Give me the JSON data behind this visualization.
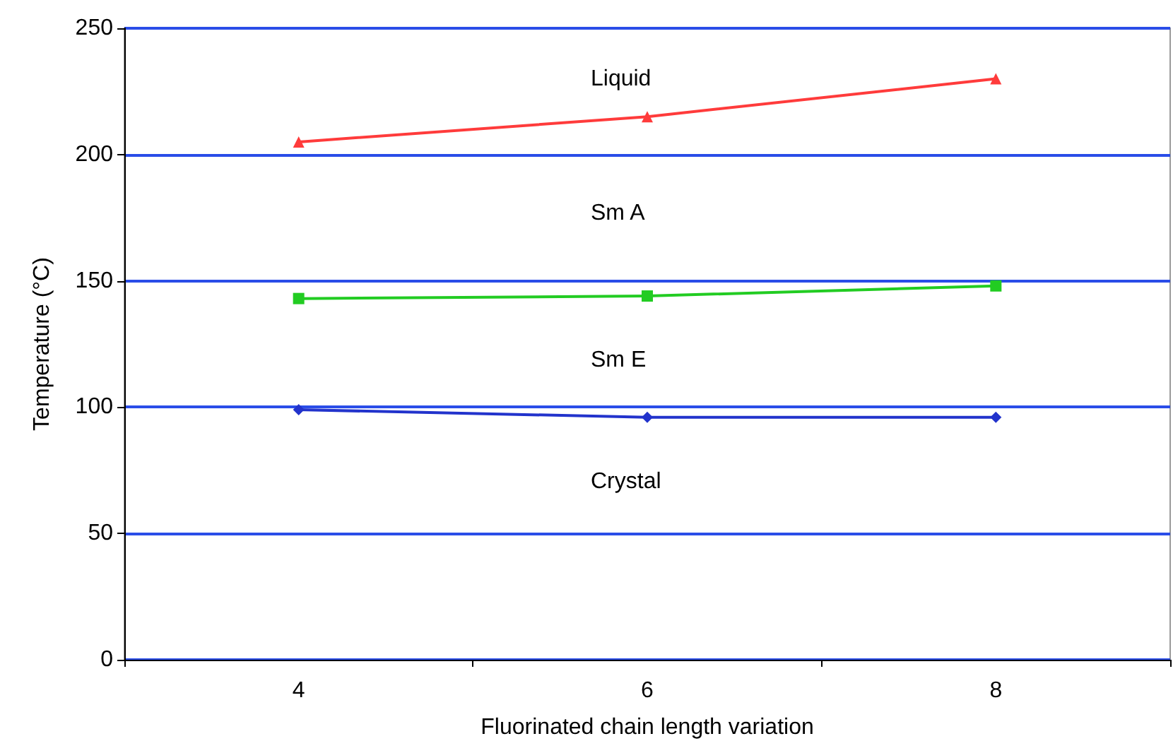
{
  "chart_data": {
    "type": "line",
    "xlabel": "Fluorinated chain length variation",
    "ylabel": "Temperature (°C)",
    "categories": [
      "4",
      "6",
      "8"
    ],
    "series": [
      {
        "color": "#ff3b3b",
        "marker": "triangle",
        "values": [
          205,
          215,
          230
        ]
      },
      {
        "color": "#22cc22",
        "marker": "square",
        "values": [
          143,
          144,
          148
        ]
      },
      {
        "color": "#2233cc",
        "marker": "diamond",
        "values": [
          99,
          96,
          96
        ]
      }
    ],
    "ylim": [
      0,
      250
    ],
    "yticks": [
      0,
      50,
      100,
      150,
      200,
      250
    ],
    "grid": "y",
    "annotations": [
      "Liquid",
      "Sm A",
      "Sm E",
      "Crystal"
    ]
  }
}
